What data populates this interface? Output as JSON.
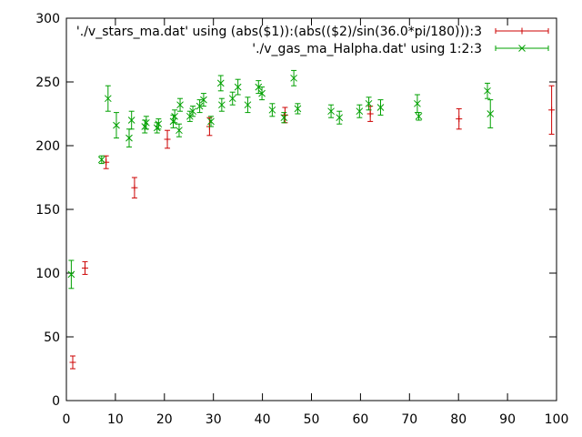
{
  "chart_data": {
    "type": "scatter",
    "xlim": [
      0,
      100
    ],
    "ylim": [
      0,
      300
    ],
    "xticks": [
      "0",
      "10",
      "20",
      "30",
      "40",
      "50",
      "60",
      "70",
      "80",
      "90",
      "100"
    ],
    "yticks": [
      "0",
      "50",
      "100",
      "150",
      "200",
      "250",
      "300"
    ],
    "grid": false,
    "legend_position": "top-right",
    "series": [
      {
        "name": "'./v_stars_ma.dat' using (abs($1)):(abs(($2)/sin(36.0*pi/180))):3",
        "color": "#cc0000",
        "marker": "plus",
        "points": [
          {
            "x": 1.3,
            "y": 30,
            "err": 5
          },
          {
            "x": 3.8,
            "y": 104,
            "err": 5
          },
          {
            "x": 8.1,
            "y": 187,
            "err": 5
          },
          {
            "x": 13.9,
            "y": 167,
            "err": 8
          },
          {
            "x": 20.6,
            "y": 205,
            "err": 7
          },
          {
            "x": 29.2,
            "y": 215,
            "err": 7
          },
          {
            "x": 44.6,
            "y": 224,
            "err": 6
          },
          {
            "x": 62.0,
            "y": 225,
            "err": 6
          },
          {
            "x": 80.1,
            "y": 221,
            "err": 8
          },
          {
            "x": 99.0,
            "y": 228,
            "err": 19
          }
        ]
      },
      {
        "name": "'./v_gas_ma_Halpha.dat' using 1:2:3",
        "color": "#00a000",
        "marker": "cross",
        "points": [
          {
            "x": 1.0,
            "y": 99,
            "err": 11
          },
          {
            "x": 7.2,
            "y": 189,
            "err": 3
          },
          {
            "x": 8.5,
            "y": 237,
            "err": 10
          },
          {
            "x": 10.2,
            "y": 216,
            "err": 10
          },
          {
            "x": 12.8,
            "y": 206,
            "err": 7
          },
          {
            "x": 13.3,
            "y": 220,
            "err": 7
          },
          {
            "x": 16.0,
            "y": 215,
            "err": 5
          },
          {
            "x": 16.3,
            "y": 218,
            "err": 5
          },
          {
            "x": 18.5,
            "y": 214,
            "err": 4
          },
          {
            "x": 18.8,
            "y": 217,
            "err": 4
          },
          {
            "x": 21.8,
            "y": 219,
            "err": 5
          },
          {
            "x": 22.1,
            "y": 223,
            "err": 5
          },
          {
            "x": 23.0,
            "y": 212,
            "err": 5
          },
          {
            "x": 23.2,
            "y": 232,
            "err": 5
          },
          {
            "x": 25.2,
            "y": 223,
            "err": 4
          },
          {
            "x": 25.8,
            "y": 227,
            "err": 4
          },
          {
            "x": 27.2,
            "y": 231,
            "err": 5
          },
          {
            "x": 28.0,
            "y": 236,
            "err": 5
          },
          {
            "x": 29.5,
            "y": 219,
            "err": 4
          },
          {
            "x": 31.5,
            "y": 249,
            "err": 6
          },
          {
            "x": 31.7,
            "y": 232,
            "err": 5
          },
          {
            "x": 33.9,
            "y": 237,
            "err": 5
          },
          {
            "x": 35.0,
            "y": 246,
            "err": 6
          },
          {
            "x": 37.0,
            "y": 232,
            "err": 6
          },
          {
            "x": 39.2,
            "y": 246,
            "err": 5
          },
          {
            "x": 39.9,
            "y": 241,
            "err": 5
          },
          {
            "x": 42.0,
            "y": 228,
            "err": 5
          },
          {
            "x": 44.4,
            "y": 222,
            "err": 4
          },
          {
            "x": 46.4,
            "y": 253,
            "err": 6
          },
          {
            "x": 47.2,
            "y": 229,
            "err": 4
          },
          {
            "x": 54.0,
            "y": 227,
            "err": 5
          },
          {
            "x": 55.7,
            "y": 222,
            "err": 5
          },
          {
            "x": 59.8,
            "y": 227,
            "err": 5
          },
          {
            "x": 61.7,
            "y": 233,
            "err": 5
          },
          {
            "x": 64.1,
            "y": 230,
            "err": 6
          },
          {
            "x": 71.6,
            "y": 233,
            "err": 7
          },
          {
            "x": 71.9,
            "y": 223,
            "err": 3
          },
          {
            "x": 85.9,
            "y": 243,
            "err": 6
          },
          {
            "x": 86.5,
            "y": 225,
            "err": 11
          }
        ]
      }
    ]
  }
}
